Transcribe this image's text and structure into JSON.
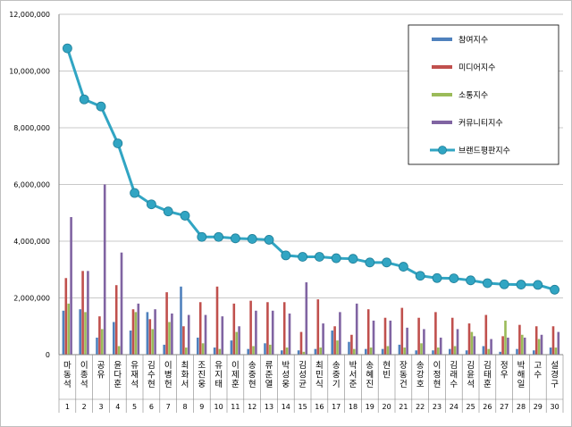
{
  "chart_data": {
    "type": "bar",
    "title": "",
    "xlabel": "",
    "ylabel": "",
    "ylim": [
      0,
      12000000
    ],
    "yticks": [
      "0",
      "2,000,000",
      "4,000,000",
      "6,000,000",
      "8,000,000",
      "10,000,000",
      "12,000,000"
    ],
    "ytick_values": [
      0,
      2000000,
      4000000,
      6000000,
      8000000,
      10000000,
      12000000
    ],
    "grid": true,
    "legend_position": "top-right",
    "categories": [
      "마동석",
      "이종석",
      "공유",
      "윤다훈",
      "유재석",
      "김수현",
      "이병헌",
      "최화서",
      "조진웅",
      "유지태",
      "이제훈",
      "송중현",
      "류준열",
      "박성웅",
      "김성균",
      "최민식",
      "송중기",
      "박서준",
      "송혜진",
      "현빈",
      "장동건",
      "송강호",
      "이정현",
      "김래수",
      "김윤석",
      "김태훈",
      "정우",
      "박해일",
      "고수",
      "설경구"
    ],
    "ranks": [
      "1",
      "2",
      "3",
      "4",
      "5",
      "6",
      "7",
      "8",
      "9",
      "10",
      "11",
      "12",
      "13",
      "14",
      "15",
      "16",
      "17",
      "18",
      "19",
      "20",
      "21",
      "22",
      "23",
      "24",
      "25",
      "26",
      "27",
      "28",
      "29",
      "30"
    ],
    "series": [
      {
        "name": "참여지수",
        "kind": "bar",
        "color": "#4f81bd",
        "values": [
          1550000,
          1600000,
          600000,
          1150000,
          850000,
          1500000,
          350000,
          2400000,
          600000,
          250000,
          500000,
          200000,
          400000,
          150000,
          150000,
          200000,
          850000,
          450000,
          200000,
          200000,
          350000,
          150000,
          150000,
          200000,
          150000,
          300000,
          100000,
          200000,
          150000,
          250000
        ]
      },
      {
        "name": "미디어지수",
        "kind": "bar",
        "color": "#c0504d",
        "values": [
          2700000,
          2950000,
          1350000,
          2450000,
          1600000,
          1250000,
          2200000,
          1000000,
          1850000,
          2400000,
          1800000,
          1900000,
          1850000,
          1850000,
          800000,
          1950000,
          1000000,
          700000,
          1600000,
          1300000,
          1650000,
          1300000,
          1500000,
          1300000,
          1100000,
          1400000,
          650000,
          1050000,
          1000000,
          1000000
        ]
      },
      {
        "name": "소통지수",
        "kind": "bar",
        "color": "#9bbb59",
        "values": [
          1800000,
          1500000,
          900000,
          300000,
          1500000,
          900000,
          1150000,
          250000,
          400000,
          200000,
          800000,
          300000,
          350000,
          250000,
          100000,
          250000,
          500000,
          200000,
          250000,
          300000,
          250000,
          400000,
          250000,
          300000,
          800000,
          200000,
          1200000,
          700000,
          550000,
          250000
        ]
      },
      {
        "name": "커뮤니티지수",
        "kind": "bar",
        "color": "#8064a2",
        "values": [
          4850000,
          2950000,
          6000000,
          3600000,
          1800000,
          1600000,
          1450000,
          1400000,
          1400000,
          1350000,
          1000000,
          1550000,
          1550000,
          1450000,
          2550000,
          1100000,
          1500000,
          1800000,
          1200000,
          1200000,
          950000,
          900000,
          600000,
          900000,
          650000,
          550000,
          600000,
          600000,
          700000,
          800000
        ]
      },
      {
        "name": "브랜드평판지수",
        "kind": "line",
        "color": "#31a5c3",
        "values": [
          10800000,
          9000000,
          8750000,
          7450000,
          5700000,
          5300000,
          5050000,
          4900000,
          4150000,
          4150000,
          4100000,
          4080000,
          4050000,
          3500000,
          3450000,
          3450000,
          3400000,
          3380000,
          3250000,
          3250000,
          3100000,
          2780000,
          2700000,
          2690000,
          2620000,
          2520000,
          2480000,
          2470000,
          2460000,
          2290000
        ]
      }
    ]
  }
}
